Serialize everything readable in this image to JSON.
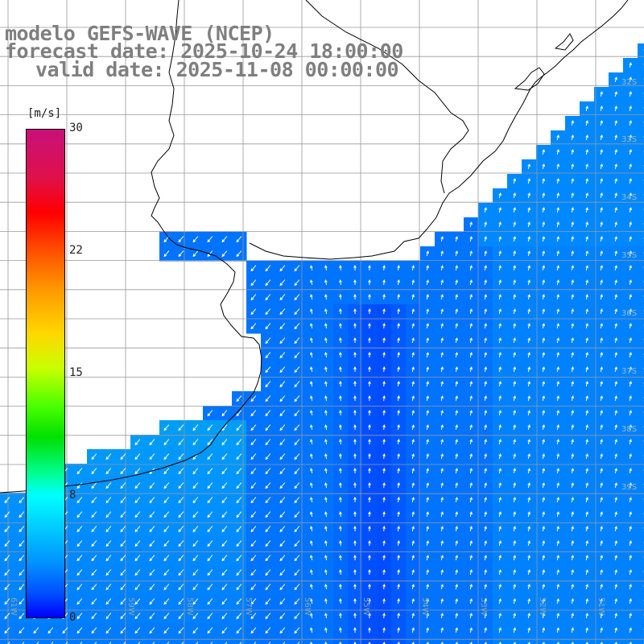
{
  "title": {
    "line1": "modelo GEFS-WAVE (NCEP)",
    "line2": "forecast date: 2025-10-24 18:00:00",
    "line3": "valid date: 2025-11-08 00:00:00"
  },
  "colorbar": {
    "unit": "[m/s]",
    "ticks": [
      "30",
      "22",
      "15",
      "8",
      "0"
    ],
    "range": [
      0,
      30
    ]
  },
  "lon_labels": [
    "61W",
    "59W",
    "58W",
    "57W",
    "56W",
    "55W",
    "54W",
    "53W",
    "52W",
    "51W"
  ],
  "lat_labels": [
    "32S",
    "33S",
    "34S",
    "35S",
    "36S",
    "37S",
    "38S",
    "39S"
  ],
  "colors": {
    "land": "#ffffff",
    "coastline": "#000000",
    "grid": "#888888",
    "arrow": "#ffffff",
    "title": "#7f7f7f"
  },
  "map": {
    "field": "wind speed with direction arrows",
    "domain": "Rio de la Plata and South Atlantic off Uruguay / Brazil / Argentina"
  }
}
